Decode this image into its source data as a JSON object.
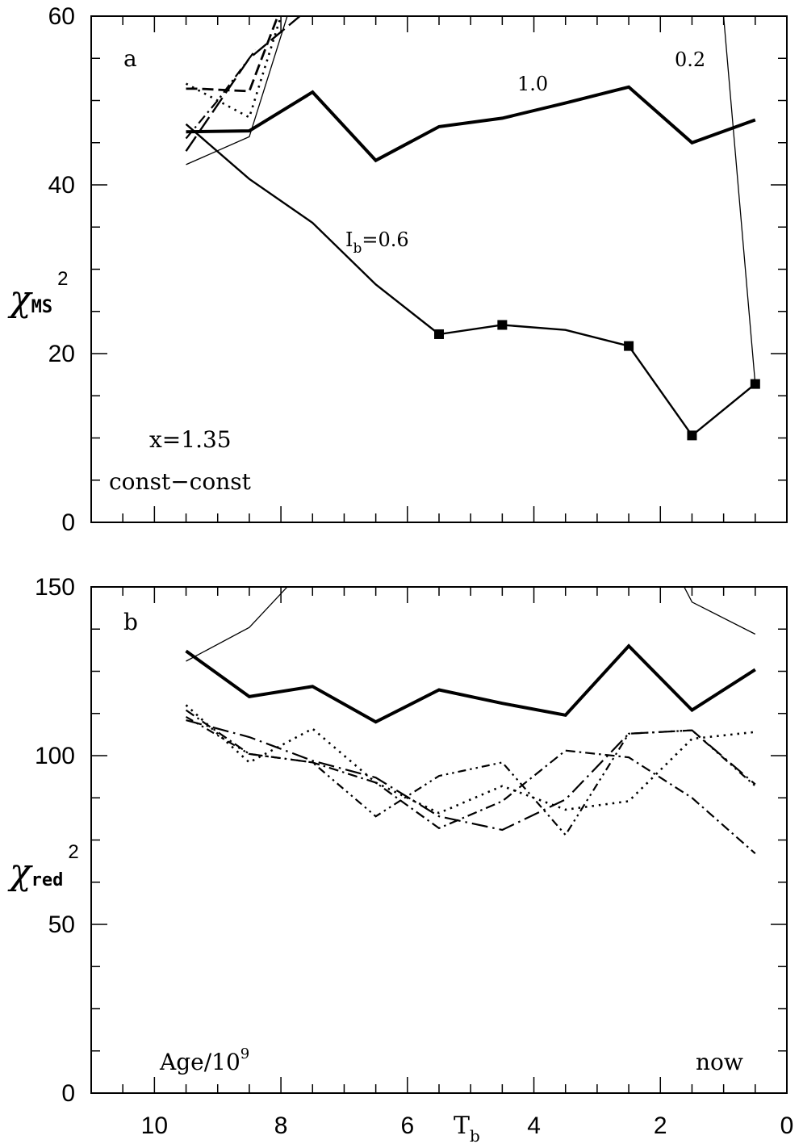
{
  "chart_data": [
    {
      "type": "line",
      "panel_label": "a",
      "ylabel": {
        "symbol": "χ",
        "subscript": "MS",
        "superscript": "2"
      },
      "xlim": [
        11,
        0
      ],
      "ylim": [
        0,
        60
      ],
      "xticks": [
        10,
        8,
        6,
        4,
        2,
        0
      ],
      "yticks": [
        0,
        20,
        40,
        60
      ],
      "annotations": {
        "model": "x=1.35",
        "sfr": "const−const",
        "label_10": "1.0",
        "label_02": "0.2",
        "label_06_main": "I",
        "label_06_sub": "b",
        "label_06_rest": "=0.6"
      },
      "series": [
        {
          "name": "1.0",
          "style": "thick-solid",
          "x": [
            9.5,
            8.5,
            7.5,
            6.5,
            5.5,
            4.5,
            3.5,
            2.5,
            1.5,
            0.5
          ],
          "y": [
            46.3,
            46.4,
            51.0,
            42.9,
            46.9,
            47.9,
            49.7,
            51.6,
            45.0,
            47.7
          ]
        },
        {
          "name": "0.6",
          "style": "medium-solid",
          "markers": "square",
          "marker_x": [
            5.5,
            4.5,
            2.5,
            1.5,
            0.5
          ],
          "x": [
            9.5,
            8.5,
            7.5,
            6.5,
            5.5,
            4.5,
            3.5,
            2.5,
            1.5,
            0.5
          ],
          "y": [
            47.2,
            40.7,
            35.5,
            28.2,
            22.3,
            23.4,
            22.8,
            20.9,
            10.3,
            16.4
          ]
        },
        {
          "name": "0.2",
          "style": "thin-solid",
          "x": [
            9.5,
            8.5,
            7.9,
            7.3,
            1.0,
            0.5
          ],
          "y": [
            42.4,
            45.7,
            60.0,
            65.0,
            60.0,
            16.4
          ]
        },
        {
          "style": "dashed",
          "x": [
            9.5,
            9.3,
            8.5,
            8.05
          ],
          "y": [
            51.4,
            51.4,
            51.1,
            60.0
          ]
        },
        {
          "style": "dotted",
          "x": [
            9.5,
            8.5,
            8.0
          ],
          "y": [
            52.0,
            48.0,
            60.0
          ]
        },
        {
          "style": "long-dash",
          "x": [
            9.5,
            8.5,
            7.7
          ],
          "y": [
            44.0,
            55.0,
            60.0
          ]
        },
        {
          "style": "dash-dot",
          "x": [
            9.5,
            9.0,
            8.4
          ],
          "y": [
            45.5,
            50.0,
            56.0
          ]
        }
      ]
    },
    {
      "type": "line",
      "panel_label": "b",
      "ylabel": {
        "symbol": "χ",
        "subscript": "red",
        "superscript": "2"
      },
      "xlabel": {
        "main": "T",
        "sub": "b"
      },
      "xlim": [
        11,
        0
      ],
      "ylim": [
        0,
        150
      ],
      "xticks": [
        10,
        8,
        6,
        4,
        2,
        0
      ],
      "yticks": [
        0,
        50,
        100,
        150
      ],
      "annotations": {
        "age_main": "Age/10",
        "age_sup": "9",
        "now": "now"
      },
      "series": [
        {
          "name": "1.0",
          "style": "thick-solid",
          "x": [
            9.5,
            8.5,
            7.5,
            6.5,
            5.5,
            4.5,
            3.5,
            2.5,
            1.5,
            0.5
          ],
          "y": [
            131.0,
            117.5,
            120.5,
            110.0,
            119.5,
            115.5,
            112.0,
            132.5,
            113.5,
            125.5
          ]
        },
        {
          "name": "0.2",
          "style": "thin-solid",
          "x": [
            9.5,
            8.5,
            7.9,
            7.5
          ],
          "y": [
            128.0,
            138.0,
            150.0,
            160.0
          ]
        },
        {
          "name": "0.2",
          "style": "thin-solid",
          "x": [
            1.9,
            1.5,
            0.5
          ],
          "y": [
            160.0,
            145.5,
            136.0
          ]
        },
        {
          "style": "dotted",
          "x": [
            9.5,
            8.5,
            7.5,
            6.5,
            5.5,
            4.5,
            3.5,
            2.5,
            1.5,
            0.5
          ],
          "y": [
            115.0,
            98.0,
            108.0,
            92.0,
            83.0,
            91.0,
            84.0,
            86.5,
            105.0,
            107.0
          ]
        },
        {
          "style": "dash-dot",
          "x": [
            9.5,
            8.5,
            7.5,
            6.5,
            5.5,
            4.5,
            3.5,
            2.5,
            1.5,
            0.5
          ],
          "y": [
            113.5,
            100.5,
            98.0,
            92.0,
            78.5,
            86.5,
            101.5,
            99.5,
            87.5,
            71.0
          ]
        },
        {
          "style": "long-dash-dot",
          "x": [
            9.5,
            8.5,
            7.5,
            6.5,
            5.5,
            4.5,
            3.5,
            2.5,
            1.5,
            0.5
          ],
          "y": [
            110.5,
            105.5,
            98.5,
            93.5,
            82.0,
            78.0,
            87.0,
            106.5,
            107.5,
            91.5
          ]
        },
        {
          "style": "dash-dot-2",
          "x": [
            9.5,
            8.5,
            7.5,
            6.5,
            5.5,
            4.5,
            3.5,
            2.5,
            1.5,
            0.5
          ],
          "y": [
            111.5,
            100.5,
            98.0,
            82.0,
            94.0,
            98.0,
            76.5,
            106.5,
            107.5,
            91.0
          ]
        }
      ]
    }
  ]
}
